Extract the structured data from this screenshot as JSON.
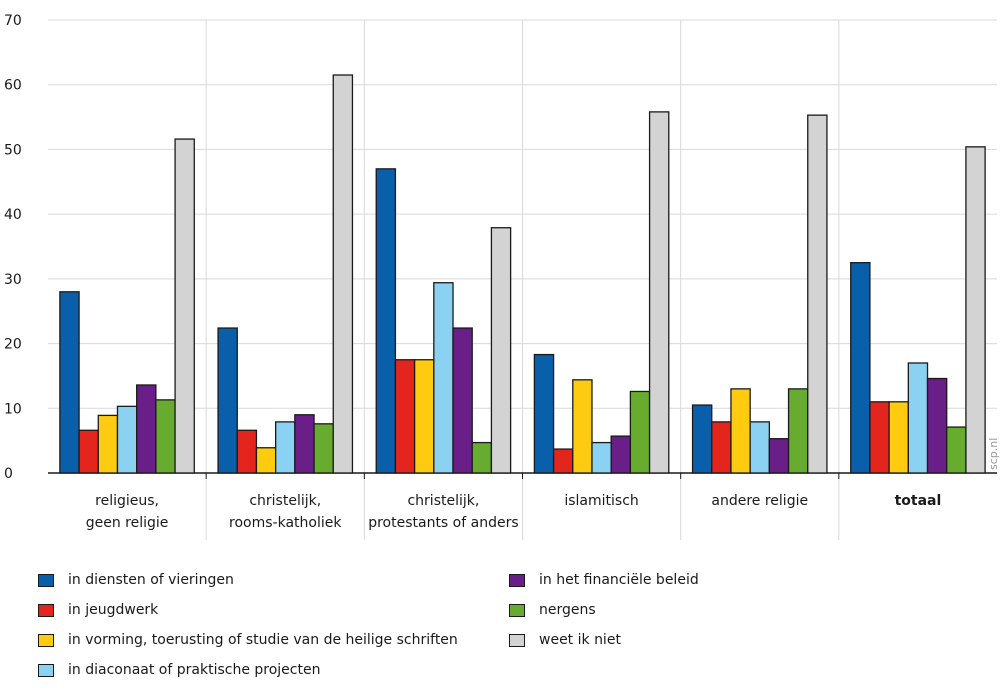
{
  "chart_data": {
    "type": "bar",
    "categories": [
      [
        "religieus,",
        "geen religie"
      ],
      [
        "christelijk,",
        "rooms-katholiek"
      ],
      [
        "christelijk,",
        "protestants of anders"
      ],
      [
        "islamitisch"
      ],
      [
        "andere religie"
      ],
      [
        "totaal"
      ]
    ],
    "bold_categories": [
      5
    ],
    "series": [
      {
        "name": "in diensten of vieringen",
        "color": "#0a5fab",
        "values": [
          28,
          22.4,
          47,
          18.3,
          10.5,
          32.5
        ]
      },
      {
        "name": "in jeugdwerk",
        "color": "#e3251d",
        "values": [
          6.6,
          6.6,
          17.5,
          3.7,
          7.9,
          11
        ]
      },
      {
        "name": "in vorming, toerusting of studie van de heilige schriften",
        "color": "#ffcb11",
        "values": [
          8.9,
          3.9,
          17.5,
          14.4,
          13,
          11
        ]
      },
      {
        "name": "in diaconaat of praktische projecten",
        "color": "#8bd1f2",
        "values": [
          10.3,
          7.9,
          29.4,
          4.7,
          7.9,
          17
        ]
      },
      {
        "name": "in het financiële beleid",
        "color": "#6a1e87",
        "values": [
          13.6,
          9,
          22.4,
          5.7,
          5.3,
          14.6
        ]
      },
      {
        "name": "nergens",
        "color": "#67ac2e",
        "values": [
          11.3,
          7.6,
          4.7,
          12.6,
          13,
          7.1
        ]
      },
      {
        "name": "weet ik niet",
        "color": "#d3d3d3",
        "values": [
          51.6,
          61.5,
          37.9,
          55.8,
          55.3,
          50.4
        ]
      }
    ],
    "yticks": [
      0,
      10,
      20,
      30,
      40,
      50,
      60,
      70
    ],
    "ylim": [
      0,
      70
    ],
    "grid": true,
    "legend_placement": "bottom",
    "watermark": "scp.nl"
  }
}
